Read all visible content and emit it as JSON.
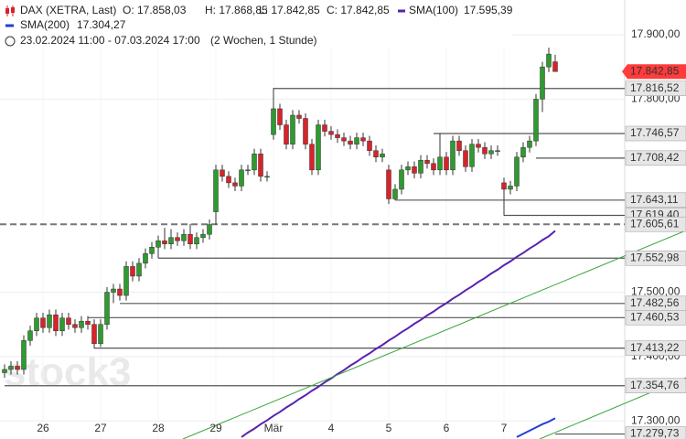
{
  "header": {
    "instrument": "DAX (XETRA, Last)",
    "open": "O: 17.858,03",
    "high": "H: 17.868,85",
    "low": "L: 17.842,85",
    "close": "C: 17.842,85",
    "sma100_value": "17.595,39",
    "sma200_value": "17.304,27",
    "range": "23.02.2024 11:00 - 07.03.2024 17:00",
    "period": "(2 Wochen, 1 Stunde)",
    "watermark": "stock3"
  },
  "chart_data": {
    "type": "candlestick",
    "categories": [
      null,
      null,
      null,
      null,
      null,
      null,
      "26",
      null,
      null,
      null,
      null,
      null,
      null,
      null,
      null,
      "27",
      null,
      null,
      null,
      null,
      null,
      null,
      null,
      null,
      "28",
      null,
      null,
      null,
      null,
      null,
      null,
      null,
      null,
      "29",
      null,
      null,
      null,
      null,
      null,
      null,
      null,
      null,
      "Mär",
      null,
      null,
      null,
      null,
      null,
      null,
      null,
      null,
      "4",
      null,
      null,
      null,
      null,
      null,
      null,
      null,
      null,
      "5",
      null,
      null,
      null,
      null,
      null,
      null,
      null,
      null,
      "6",
      null,
      null,
      null,
      null,
      null,
      null,
      null,
      null,
      "7",
      null,
      null,
      null,
      null,
      null,
      null,
      null,
      null
    ],
    "open": [
      17375,
      17380,
      17385,
      17380,
      17425,
      17440,
      17460,
      17445,
      17465,
      17440,
      17460,
      17450,
      17445,
      17455,
      17450,
      17420,
      17450,
      17500,
      17505,
      17495,
      17540,
      17525,
      17545,
      17560,
      17570,
      17580,
      17575,
      17585,
      17580,
      17590,
      17575,
      17585,
      17590,
      17625,
      17690,
      17680,
      17670,
      17665,
      17690,
      17690,
      17715,
      17680,
      17745,
      17785,
      17760,
      17730,
      17775,
      17770,
      17730,
      17690,
      17760,
      17750,
      17745,
      17740,
      17735,
      17730,
      17740,
      17735,
      17720,
      17710,
      17690,
      17645,
      17660,
      17690,
      17695,
      17685,
      17705,
      17700,
      17690,
      17710,
      17690,
      17735,
      17720,
      17695,
      17730,
      17725,
      17715,
      17720,
      17670,
      17660,
      17665,
      17710,
      17725,
      17735,
      17800,
      17850,
      17858.03
    ],
    "high": [
      17388,
      17393,
      17393,
      17433,
      17448,
      17468,
      17468,
      17473,
      17473,
      17468,
      17468,
      17458,
      17463,
      17463,
      17458,
      17458,
      17508,
      17513,
      17513,
      17548,
      17548,
      17553,
      17568,
      17578,
      17588,
      17600,
      17598,
      17593,
      17598,
      17606,
      17593,
      17598,
      17613,
      17698,
      17698,
      17688,
      17678,
      17698,
      17698,
      17723,
      17723,
      17688,
      17817,
      17793,
      17768,
      17783,
      17783,
      17778,
      17738,
      17768,
      17768,
      17758,
      17753,
      17748,
      17743,
      17748,
      17748,
      17743,
      17728,
      17723,
      17698,
      17668,
      17698,
      17703,
      17703,
      17713,
      17713,
      17708,
      17747,
      17718,
      17743,
      17743,
      17728,
      17738,
      17738,
      17733,
      17728,
      17728,
      17678,
      17673,
      17718,
      17733,
      17743,
      17808,
      17858,
      17880,
      17868.85
    ],
    "low": [
      17367,
      17372,
      17372,
      17372,
      17417,
      17432,
      17437,
      17437,
      17432,
      17432,
      17442,
      17437,
      17437,
      17442,
      17413,
      17415,
      17442,
      17483,
      17487,
      17487,
      17517,
      17517,
      17537,
      17552,
      17553,
      17567,
      17567,
      17572,
      17572,
      17567,
      17567,
      17577,
      17582,
      17605,
      17672,
      17662,
      17657,
      17657,
      17682,
      17682,
      17672,
      17672,
      17737,
      17752,
      17722,
      17722,
      17762,
      17722,
      17682,
      17682,
      17742,
      17737,
      17732,
      17727,
      17722,
      17722,
      17727,
      17712,
      17702,
      17702,
      17637,
      17643,
      17652,
      17682,
      17677,
      17677,
      17692,
      17682,
      17682,
      17682,
      17682,
      17712,
      17687,
      17687,
      17717,
      17707,
      17707,
      17712,
      17619,
      17652,
      17657,
      17702,
      17717,
      17727,
      17780,
      17842,
      17842.85
    ],
    "close": [
      17380,
      17385,
      17380,
      17425,
      17440,
      17460,
      17445,
      17465,
      17440,
      17460,
      17450,
      17445,
      17455,
      17450,
      17420,
      17450,
      17500,
      17505,
      17495,
      17540,
      17525,
      17545,
      17560,
      17570,
      17580,
      17575,
      17585,
      17580,
      17590,
      17575,
      17585,
      17590,
      17605,
      17690,
      17680,
      17670,
      17665,
      17690,
      17690,
      17715,
      17680,
      17680,
      17785,
      17760,
      17730,
      17775,
      17770,
      17730,
      17690,
      17760,
      17750,
      17745,
      17740,
      17735,
      17730,
      17740,
      17735,
      17720,
      17710,
      17715,
      17645,
      17660,
      17690,
      17695,
      17685,
      17705,
      17700,
      17690,
      17710,
      17690,
      17735,
      17720,
      17695,
      17730,
      17725,
      17715,
      17720,
      17720,
      17660,
      17665,
      17710,
      17725,
      17735,
      17800,
      17850,
      17870,
      17842.85
    ],
    "up_color": "#2f9a2f",
    "down_color": "#d8232a",
    "series": [
      {
        "name": "SMA(100)",
        "color": "#5a22b0",
        "values": [
          null,
          null,
          null,
          null,
          null,
          null,
          null,
          null,
          null,
          null,
          null,
          null,
          null,
          null,
          null,
          null,
          null,
          null,
          null,
          null,
          null,
          null,
          null,
          null,
          null,
          null,
          null,
          null,
          null,
          null,
          null,
          null,
          null,
          null,
          null,
          null,
          null,
          17275,
          17282,
          17288,
          17295,
          17301,
          17308,
          17314,
          17321,
          17327,
          17334,
          17340,
          17347,
          17353,
          17360,
          17366,
          17373,
          17379,
          17386,
          17392,
          17399,
          17405,
          17412,
          17418,
          17425,
          17431,
          17438,
          17444,
          17451,
          17457,
          17464,
          17470,
          17477,
          17483,
          17490,
          17496,
          17503,
          17509,
          17516,
          17522,
          17529,
          17535,
          17542,
          17548,
          17555,
          17561,
          17568,
          17574,
          17581,
          17587,
          17595.39
        ]
      },
      {
        "name": "SMA(200)",
        "color": "#1f3fd6",
        "values": [
          null,
          null,
          null,
          null,
          null,
          null,
          null,
          null,
          null,
          null,
          null,
          null,
          null,
          null,
          null,
          null,
          null,
          null,
          null,
          null,
          null,
          null,
          null,
          null,
          null,
          null,
          null,
          null,
          null,
          null,
          null,
          null,
          null,
          null,
          null,
          null,
          null,
          null,
          null,
          null,
          null,
          null,
          null,
          null,
          null,
          null,
          null,
          null,
          null,
          null,
          null,
          null,
          null,
          null,
          null,
          null,
          null,
          null,
          null,
          null,
          null,
          null,
          null,
          null,
          null,
          null,
          null,
          null,
          null,
          null,
          null,
          null,
          null,
          null,
          null,
          null,
          null,
          null,
          null,
          null,
          17275,
          17280,
          17285,
          17290,
          17295,
          17299,
          17304.27
        ]
      }
    ],
    "ylim": [
      17272,
      17954
    ],
    "yticks": [
      {
        "value": 17900,
        "label": "17.900,00"
      },
      {
        "value": 17800,
        "label": "17.800,00"
      },
      {
        "value": 17500,
        "label": "17.500,00"
      },
      {
        "value": 17400,
        "label": "17.400,00"
      },
      {
        "value": 17300,
        "label": "17.300,00"
      }
    ],
    "grid": true,
    "levels": [
      {
        "value": 17816.52,
        "label": "17.816,52",
        "from": 42
      },
      {
        "value": 17746.57,
        "label": "17.746,57",
        "from": 67
      },
      {
        "value": 17708.42,
        "label": "17.708,42",
        "from": 83
      },
      {
        "value": 17643.11,
        "label": "17.643,11",
        "from": 61
      },
      {
        "value": 17619.4,
        "label": "17.619,40",
        "from": 78
      },
      {
        "value": 17552.98,
        "label": "17.552,98",
        "from": 24
      },
      {
        "value": 17482.56,
        "label": "17.482,56",
        "from": 18
      },
      {
        "value": 17460.53,
        "label": "17.460,53",
        "from": 13
      },
      {
        "value": 17413.22,
        "label": "17.413,22",
        "from": 14
      },
      {
        "value": 17354.76,
        "label": "17.354,76",
        "from": 0
      },
      {
        "value": 17279.73,
        "label": "17.279,73",
        "from": 86
      },
      {
        "value": 17605.61,
        "label": "17.605,61",
        "from": 0,
        "style": "dashed"
      }
    ],
    "last_price": {
      "value": 17842.85,
      "label": "17.842,85",
      "color": "#ff3b3b"
    }
  }
}
